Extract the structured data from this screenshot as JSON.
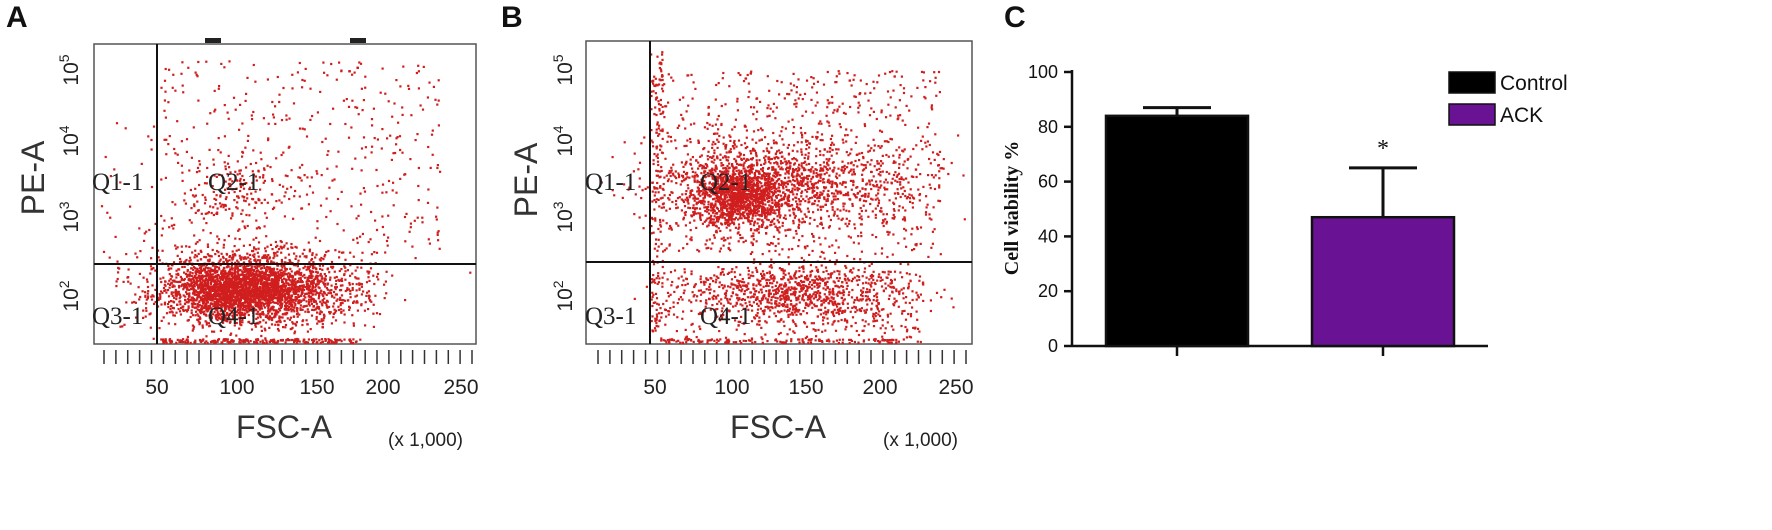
{
  "panels": {
    "a": {
      "letter": "A",
      "xlabel": "FSC-A",
      "ylabel": "PE-A",
      "scale_note": "(x 1,000)",
      "x_ticks": [
        "50",
        "100",
        "150",
        "200",
        "250"
      ],
      "y_ticks": [
        {
          "base": "10",
          "exp": "2"
        },
        {
          "base": "10",
          "exp": "3"
        },
        {
          "base": "10",
          "exp": "4"
        },
        {
          "base": "10",
          "exp": "5"
        }
      ],
      "quadrants": {
        "q1": "Q1-1",
        "q2": "Q2-1",
        "q3": "Q3-1",
        "q4": "Q4-1"
      },
      "dot_color": "#d01e1e"
    },
    "b": {
      "letter": "B",
      "xlabel": "FSC-A",
      "ylabel": "PE-A",
      "scale_note": "(x 1,000)",
      "x_ticks": [
        "50",
        "100",
        "150",
        "200",
        "250"
      ],
      "y_ticks": [
        {
          "base": "10",
          "exp": "2"
        },
        {
          "base": "10",
          "exp": "3"
        },
        {
          "base": "10",
          "exp": "4"
        },
        {
          "base": "10",
          "exp": "5"
        }
      ],
      "quadrants": {
        "q1": "Q1-1",
        "q2": "Q2-1",
        "q3": "Q3-1",
        "q4": "Q4-1"
      },
      "dot_color": "#d01e1e"
    },
    "c": {
      "letter": "C"
    }
  },
  "chart_data": [
    {
      "type": "scatter",
      "panel": "A",
      "xlabel": "FSC-A",
      "ylabel": "PE-A",
      "x_unit_note": "(x 1,000)",
      "xlim": [
        25,
        260
      ],
      "ylim_log10": [
        1.6,
        5.3
      ],
      "x_gate": 45,
      "y_gate_log10": 2.2,
      "clusters": [
        {
          "name": "Q4-1",
          "x_center": 115,
          "y_center_log10": 2.0,
          "relative_density": "very high"
        },
        {
          "name": "Q2-1",
          "x_center": 95,
          "y_center_log10": 3.4,
          "relative_density": "low"
        }
      ]
    },
    {
      "type": "scatter",
      "panel": "B",
      "xlabel": "FSC-A",
      "ylabel": "PE-A",
      "x_unit_note": "(x 1,000)",
      "xlim": [
        25,
        260
      ],
      "ylim_log10": [
        1.6,
        5.3
      ],
      "x_gate": 45,
      "y_gate_log10": 2.2,
      "clusters": [
        {
          "name": "Q2-1",
          "x_center": 105,
          "y_center_log10": 3.4,
          "relative_density": "high"
        },
        {
          "name": "Q4-1",
          "x_center": 140,
          "y_center_log10": 1.9,
          "relative_density": "moderate"
        }
      ]
    },
    {
      "type": "bar",
      "panel": "C",
      "categories": [
        "Control",
        "ACK"
      ],
      "values": [
        84,
        47
      ],
      "error_upper": [
        87,
        65
      ],
      "colors": [
        "#000000",
        "#6a1294"
      ],
      "ylabel": "Cell viability %",
      "ylim": [
        0,
        100
      ],
      "yticks": [
        "0",
        "20",
        "40",
        "60",
        "80",
        "100"
      ],
      "annotations": [
        {
          "category": "ACK",
          "text": "*"
        }
      ],
      "legend": {
        "placement": "top-right",
        "entries": [
          "Control",
          "ACK"
        ]
      }
    }
  ]
}
